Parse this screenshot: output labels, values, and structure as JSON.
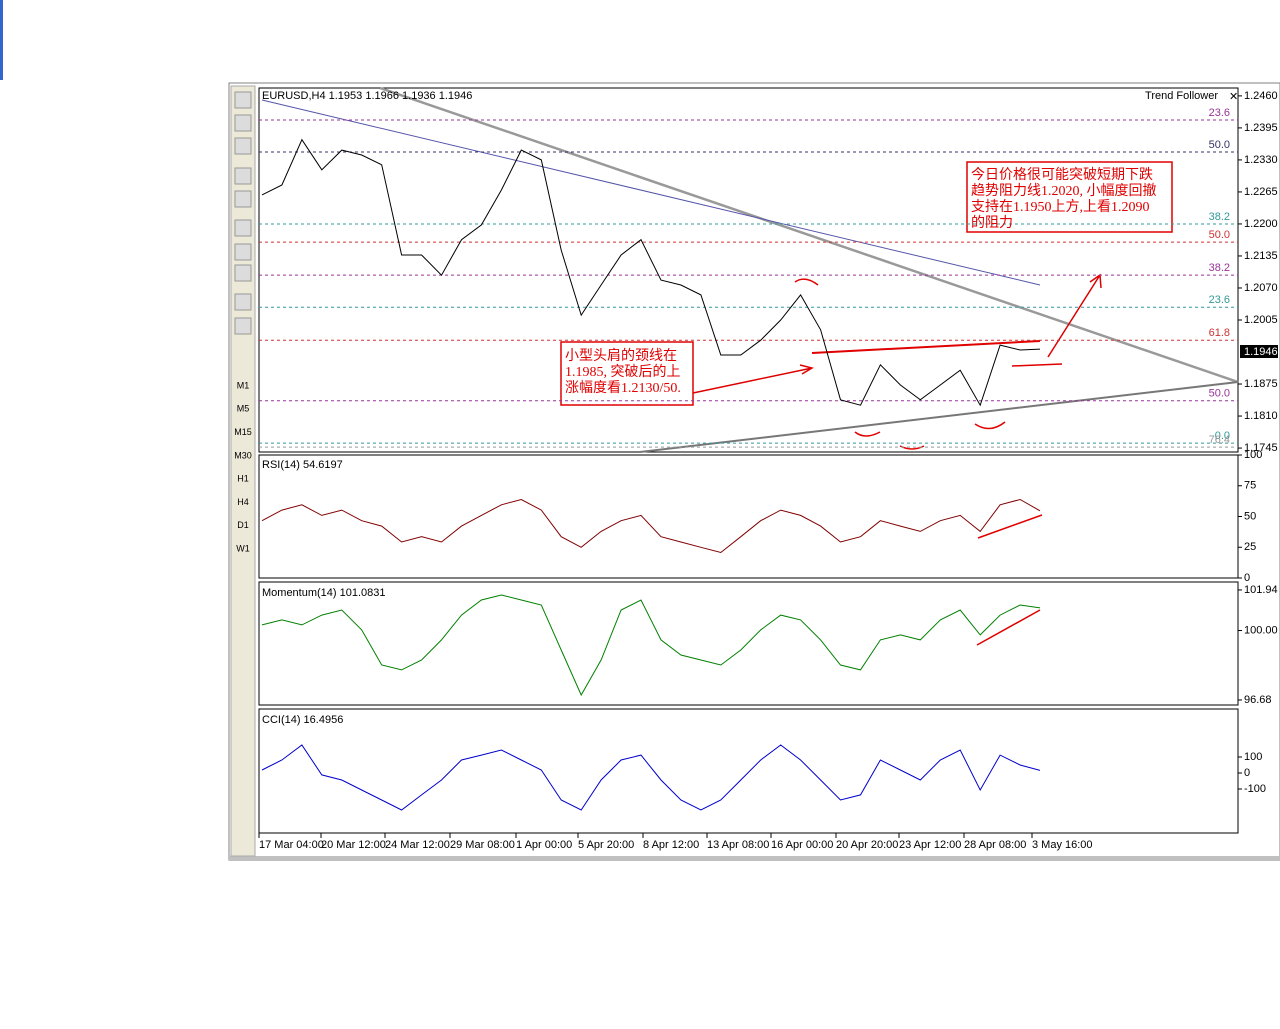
{
  "chart_data": [
    {
      "type": "line",
      "symbol_header": "EURUSD,H4  1.1953 1.1966 1.1936 1.1946",
      "indicator_name": "Trend Follower",
      "current_price": "1.1946",
      "color": "#000000",
      "values": [
        1.2259,
        1.2279,
        1.2371,
        1.231,
        1.235,
        1.234,
        1.232,
        1.2137,
        1.2137,
        1.2096,
        1.2168,
        1.2198,
        1.2269,
        1.235,
        1.233,
        1.2147,
        1.2015,
        1.2076,
        1.2137,
        1.2168,
        1.2086,
        1.2076,
        1.2056,
        1.1934,
        1.1934,
        1.1964,
        1.2005,
        1.2056,
        1.1985,
        1.1843,
        1.1832,
        1.1914,
        1.1873,
        1.1843,
        1.1873,
        1.1903,
        1.1832,
        1.1954,
        1.1944,
        1.1946
      ],
      "ylim": [
        1.1737,
        1.2476
      ],
      "yticks": [
        {
          "value": 1.246,
          "label": "1.2460"
        },
        {
          "value": 1.2395,
          "label": "1.2395"
        },
        {
          "value": 1.233,
          "label": "1.2330"
        },
        {
          "value": 1.2265,
          "label": "1.2265"
        },
        {
          "value": 1.22,
          "label": "1.2200"
        },
        {
          "value": 1.2135,
          "label": "1.2135"
        },
        {
          "value": 1.207,
          "label": "1.2070"
        },
        {
          "value": 1.2005,
          "label": "1.2005"
        },
        {
          "value": 1.1875,
          "label": "1.1875"
        },
        {
          "value": 1.181,
          "label": "1.1810"
        },
        {
          "value": 1.1745,
          "label": "1.1745"
        }
      ],
      "fib_levels": [
        {
          "text": "23.6",
          "price": 1.2411,
          "color": "#993399"
        },
        {
          "text": "50.0",
          "price": 1.2346,
          "color": "#333366"
        },
        {
          "text": "38.2",
          "price": 1.22,
          "color": "#339999"
        },
        {
          "text": "50.0",
          "price": 1.2163,
          "color": "#cc3333"
        },
        {
          "text": "38.2",
          "price": 1.2096,
          "color": "#993399"
        },
        {
          "text": "23.6",
          "price": 1.2031,
          "color": "#339999"
        },
        {
          "text": "61.8",
          "price": 1.1964,
          "color": "#cc3333"
        },
        {
          "text": "50.0",
          "price": 1.1841,
          "color": "#993399"
        },
        {
          "text": "0.0",
          "price": 1.1755,
          "color": "#339999"
        },
        {
          "text": "76.4",
          "price": 1.1747,
          "color": "#999999"
        }
      ],
      "annotations": [
        [
          "今日价格很可能突破短期下跌",
          "趋势阻力线1.2020, 小幅度回撤",
          "支持在1.1950上方,上看1.2090",
          "的阻力"
        ],
        [
          "小型头肩的颈线在",
          "1.1985, 突破后的上",
          "涨幅度看1.2130/50."
        ]
      ],
      "x_labels": [
        "17 Mar 04:00",
        "20 Mar 12:00",
        "24 Mar 12:00",
        "29 Mar 08:00",
        "1 Apr 00:00",
        "5 Apr 20:00",
        "8 Apr 12:00",
        "13 Apr 08:00",
        "16 Apr 00:00",
        "20 Apr 20:00",
        "23 Apr 12:00",
        "28 Apr 08:00",
        "3 May 16:00"
      ],
      "timeframes": [
        "M1",
        "M5",
        "M15",
        "M30",
        "H1",
        "H4",
        "D1",
        "W1"
      ]
    },
    {
      "type": "line",
      "title": "RSI(14) 54.6197",
      "color": "#800000",
      "values": [
        46.6,
        55.2,
        59.5,
        50.9,
        55.2,
        46.6,
        42.2,
        29.3,
        33.6,
        29.3,
        42.2,
        50.9,
        59.5,
        63.8,
        55.2,
        33.6,
        25.0,
        37.9,
        46.6,
        50.9,
        33.6,
        29.3,
        25.0,
        20.7,
        33.6,
        46.6,
        55.2,
        50.9,
        42.2,
        29.3,
        33.6,
        46.6,
        42.2,
        37.9,
        46.6,
        50.9,
        37.9,
        59.5,
        63.8,
        54.6
      ],
      "ylim": [
        0,
        100
      ],
      "yticks": [
        100,
        75,
        50,
        25,
        0
      ]
    },
    {
      "type": "line",
      "title": "Momentum(14) 101.0831",
      "color": "#008000",
      "values": [
        100.27,
        100.51,
        100.27,
        100.74,
        100.98,
        100.03,
        98.35,
        98.12,
        98.59,
        99.55,
        100.74,
        101.46,
        101.7,
        101.46,
        101.22,
        99.07,
        96.92,
        98.59,
        100.98,
        101.46,
        99.55,
        98.83,
        98.59,
        98.35,
        99.07,
        100.03,
        100.74,
        100.51,
        99.55,
        98.35,
        98.12,
        99.55,
        99.79,
        99.55,
        100.51,
        100.98,
        99.79,
        100.74,
        101.22,
        101.08
      ],
      "ylim": [
        96.44,
        102.32
      ],
      "yticks": [
        101.94,
        {
          "value": 100,
          "label": "100.00"
        },
        96.68
      ]
    },
    {
      "type": "line",
      "title": "CCI(14) 16.4956",
      "color": "#0000cc",
      "values": [
        19,
        81,
        175,
        -12,
        -44,
        -106,
        -169,
        -231,
        -137,
        -44,
        81,
        112,
        144,
        81,
        19,
        -169,
        -231,
        -44,
        81,
        112,
        -44,
        -169,
        -231,
        -169,
        -44,
        81,
        175,
        81,
        -44,
        -169,
        -137,
        81,
        19,
        -44,
        81,
        144,
        -106,
        112,
        50,
        16
      ],
      "ylim": [
        -375,
        400
      ],
      "yticks": [
        100,
        0,
        -100
      ]
    }
  ]
}
